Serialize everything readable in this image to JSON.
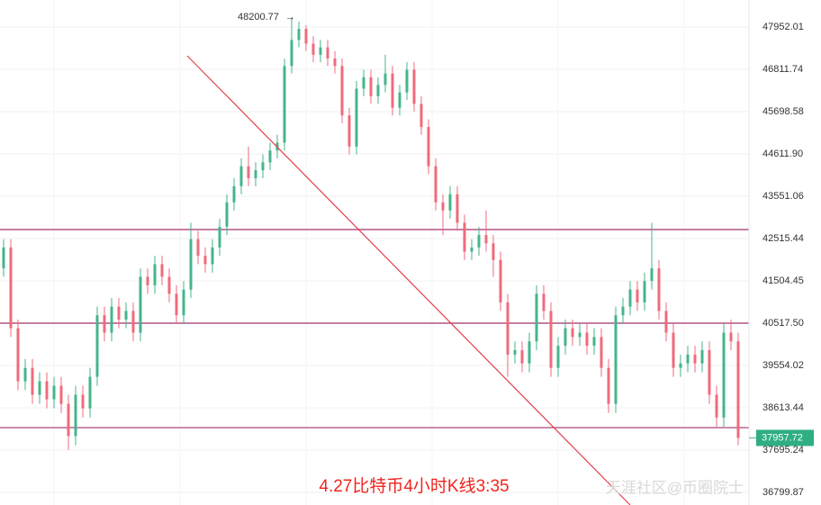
{
  "chart_data": {
    "type": "candlestick",
    "title": "4.27比特币4小时K线3:35",
    "watermark": "天涯社区@币圈院士",
    "log_scale": true,
    "grid": true,
    "up_color": "#45b58a",
    "down_color": "#ef6b7b",
    "ylim": [
      36536,
      48694
    ],
    "yticks": [
      {
        "value": 47952.01,
        "label": "47952.01"
      },
      {
        "value": 46811.74,
        "label": "46811.74"
      },
      {
        "value": 45698.58,
        "label": "45698.58"
      },
      {
        "value": 44611.9,
        "label": "44611.90"
      },
      {
        "value": 43551.06,
        "label": "43551.06"
      },
      {
        "value": 42515.44,
        "label": "42515.44"
      },
      {
        "value": 41504.45,
        "label": "41504.45"
      },
      {
        "value": 40517.5,
        "label": "40517.50"
      },
      {
        "value": 39554.02,
        "label": "39554.02"
      },
      {
        "value": 38613.44,
        "label": "38613.44"
      },
      {
        "value": 37695.24,
        "label": "37695.24"
      },
      {
        "value": 36799.87,
        "label": "36799.87"
      }
    ],
    "hlines": [
      42733,
      40517,
      38180
    ],
    "hline_color": "#a0306e",
    "open": [
      41800,
      42300,
      40400,
      39200,
      39500,
      38900,
      39200,
      38800,
      39100,
      38700,
      38000,
      38900,
      38600,
      39300,
      40700,
      40300,
      40900,
      40600,
      40800,
      40300,
      41600,
      41400,
      41900,
      41600,
      41200,
      40700,
      41300,
      42500,
      42100,
      41900,
      42300,
      42800,
      43400,
      43800,
      44300,
      44000,
      44200,
      44400,
      44700,
      44900,
      46900,
      47600,
      47900,
      47500,
      47200,
      47400,
      47100,
      46900,
      45600,
      44800,
      46300,
      46600,
      46100,
      46400,
      46700,
      45800,
      46200,
      46800,
      45900,
      45300,
      44300,
      43400,
      43200,
      43600,
      42900,
      42200,
      42300,
      42600,
      42400,
      42000,
      41000,
      39800,
      39900,
      39600,
      40100,
      41200,
      40800,
      39500,
      40000,
      40400,
      40200,
      40300,
      40000,
      40200,
      39500,
      38700,
      40700,
      40900,
      41300,
      41000,
      41500,
      41800,
      40800,
      40300,
      39500,
      39600,
      39800,
      39600,
      39900,
      38900,
      38400,
      40300,
      40100
    ],
    "high": [
      42500,
      42500,
      40600,
      39700,
      39700,
      39400,
      39400,
      39300,
      39300,
      38900,
      39100,
      39100,
      39500,
      40900,
      40900,
      41100,
      41100,
      41000,
      41000,
      41800,
      41800,
      42100,
      42100,
      41800,
      41400,
      41500,
      42900,
      42700,
      42300,
      42500,
      43000,
      43600,
      44000,
      44500,
      44800,
      44400,
      44600,
      44900,
      45100,
      47100,
      48200.77,
      48100,
      48000,
      47700,
      47600,
      47600,
      47300,
      47100,
      45800,
      46500,
      46800,
      46800,
      46600,
      47200,
      46900,
      46400,
      47000,
      47000,
      46100,
      45500,
      44500,
      43600,
      43800,
      43800,
      43100,
      42500,
      42800,
      43200,
      42600,
      42200,
      41200,
      40100,
      40100,
      40300,
      41400,
      41400,
      41000,
      40200,
      40600,
      40600,
      40500,
      40500,
      40400,
      40400,
      39700,
      40900,
      41100,
      41500,
      41500,
      41700,
      42900,
      42000,
      41000,
      40500,
      39800,
      40000,
      40000,
      40100,
      40100,
      39100,
      40500,
      40600,
      40300
    ],
    "low": [
      41600,
      40200,
      39000,
      39000,
      38700,
      38700,
      38600,
      38600,
      38500,
      37700,
      37800,
      38400,
      38400,
      39100,
      40100,
      40100,
      40400,
      40400,
      40100,
      40100,
      41200,
      41200,
      41400,
      41000,
      40500,
      40500,
      41100,
      41900,
      41700,
      41700,
      42100,
      42600,
      43200,
      43600,
      43800,
      43800,
      44000,
      44200,
      44500,
      44700,
      46700,
      47400,
      47300,
      47000,
      47000,
      46900,
      46700,
      45400,
      44600,
      44600,
      46100,
      45900,
      45900,
      46200,
      45600,
      45600,
      46000,
      45700,
      45100,
      44100,
      43200,
      42600,
      43000,
      42700,
      42000,
      42000,
      42100,
      42200,
      41600,
      40800,
      39300,
      39600,
      39400,
      39400,
      39900,
      40600,
      39300,
      39300,
      39800,
      40000,
      40000,
      39800,
      39800,
      39300,
      38500,
      38500,
      40500,
      40700,
      40800,
      40800,
      41300,
      40600,
      40100,
      39300,
      39300,
      39400,
      39400,
      39400,
      38700,
      38200,
      38200,
      39900,
      37800
    ],
    "close": [
      42300,
      40400,
      39200,
      39500,
      38900,
      39200,
      38800,
      39100,
      38700,
      38000,
      38900,
      38600,
      39300,
      40700,
      40300,
      40900,
      40600,
      40800,
      40300,
      41600,
      41400,
      41900,
      41600,
      41200,
      40700,
      41300,
      42500,
      42100,
      41900,
      42300,
      42800,
      43400,
      43800,
      44300,
      44000,
      44200,
      44400,
      44700,
      44900,
      46900,
      47600,
      47900,
      47500,
      47200,
      47400,
      47100,
      46900,
      45600,
      44800,
      46300,
      46600,
      46100,
      46400,
      46700,
      45800,
      46200,
      46800,
      45900,
      45300,
      44300,
      43400,
      43200,
      43600,
      42900,
      42200,
      42300,
      42600,
      42400,
      42000,
      41000,
      39800,
      39900,
      39600,
      40100,
      41200,
      40800,
      39500,
      40000,
      40400,
      40200,
      40300,
      40000,
      40200,
      39500,
      38700,
      40700,
      40900,
      41300,
      41000,
      41500,
      41800,
      40800,
      40300,
      39500,
      39600,
      39800,
      39600,
      39900,
      38900,
      38400,
      40300,
      40100,
      37957.72
    ]
  }
}
